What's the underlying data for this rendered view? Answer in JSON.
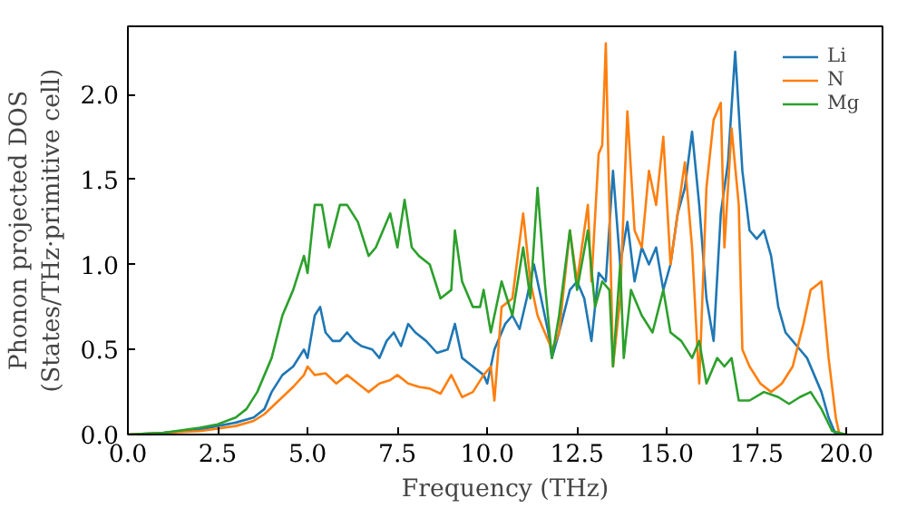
{
  "chart_data": {
    "type": "line",
    "xlabel": "Frequency (THz)",
    "ylabel": "Phonon projected DOS\n(States/THz·primitive cell)",
    "xlim": [
      0,
      21
    ],
    "ylim": [
      0,
      2.4
    ],
    "xticks": [
      {
        "value": 0,
        "label": "0.0"
      },
      {
        "value": 2.5,
        "label": "2.5"
      },
      {
        "value": 5,
        "label": "5.0"
      },
      {
        "value": 7.5,
        "label": "7.5"
      },
      {
        "value": 10,
        "label": "10.0"
      },
      {
        "value": 12.5,
        "label": "12.5"
      },
      {
        "value": 15,
        "label": "15.0"
      },
      {
        "value": 17.5,
        "label": "17.5"
      },
      {
        "value": 20,
        "label": "20.0"
      }
    ],
    "yticks": [
      {
        "value": 0,
        "label": "0.0"
      },
      {
        "value": 0.5,
        "label": "0.5"
      },
      {
        "value": 1,
        "label": "1.0"
      },
      {
        "value": 1.5,
        "label": "1.5"
      },
      {
        "value": 2,
        "label": "2.0"
      }
    ],
    "grid": false,
    "legend": "top right",
    "series": [
      {
        "name": "Li",
        "color": "#1f77b4",
        "x": [
          0,
          1,
          2,
          3,
          3.5,
          3.8,
          4,
          4.3,
          4.6,
          4.9,
          5.0,
          5.2,
          5.35,
          5.5,
          5.7,
          5.9,
          6.1,
          6.3,
          6.5,
          6.8,
          7.0,
          7.2,
          7.4,
          7.6,
          7.8,
          8.0,
          8.3,
          8.6,
          8.9,
          9.1,
          9.3,
          9.6,
          9.9,
          10.0,
          10.2,
          10.5,
          10.7,
          10.9,
          11.1,
          11.3,
          11.5,
          11.7,
          11.8,
          12.0,
          12.3,
          12.5,
          12.7,
          12.9,
          13.1,
          13.3,
          13.5,
          13.7,
          13.9,
          14.1,
          14.3,
          14.5,
          14.7,
          14.9,
          15.1,
          15.3,
          15.5,
          15.7,
          15.9,
          16.1,
          16.3,
          16.5,
          16.7,
          16.9,
          17.1,
          17.3,
          17.5,
          17.7,
          17.9,
          18.1,
          18.3,
          18.5,
          18.7,
          18.9,
          19.1,
          19.3,
          19.5,
          19.7,
          20
        ],
        "values": [
          0,
          0.01,
          0.03,
          0.07,
          0.1,
          0.15,
          0.25,
          0.35,
          0.4,
          0.5,
          0.45,
          0.7,
          0.75,
          0.6,
          0.55,
          0.55,
          0.6,
          0.55,
          0.52,
          0.5,
          0.45,
          0.55,
          0.6,
          0.52,
          0.65,
          0.6,
          0.55,
          0.48,
          0.5,
          0.65,
          0.45,
          0.4,
          0.35,
          0.3,
          0.5,
          0.65,
          0.7,
          0.62,
          0.8,
          1.0,
          0.8,
          0.6,
          0.45,
          0.6,
          0.85,
          0.9,
          0.8,
          0.55,
          0.95,
          0.9,
          1.55,
          1.0,
          1.25,
          0.9,
          1.1,
          1.0,
          1.1,
          0.85,
          1.0,
          1.3,
          1.45,
          1.78,
          1.35,
          0.8,
          0.55,
          1.3,
          1.6,
          2.25,
          1.55,
          1.2,
          1.15,
          1.2,
          1.05,
          0.75,
          0.6,
          0.55,
          0.5,
          0.45,
          0.35,
          0.25,
          0.1,
          0.0,
          0
        ]
      },
      {
        "name": "N",
        "color": "#ff7f0e",
        "x": [
          0,
          2,
          3,
          3.5,
          3.8,
          4.2,
          4.6,
          4.9,
          5.0,
          5.2,
          5.5,
          5.8,
          6.1,
          6.4,
          6.7,
          7.0,
          7.3,
          7.5,
          7.8,
          8.1,
          8.4,
          8.7,
          9.0,
          9.3,
          9.6,
          9.9,
          10.1,
          10.2,
          10.4,
          10.7,
          11.0,
          11.2,
          11.4,
          11.6,
          11.8,
          12.0,
          12.3,
          12.5,
          12.8,
          12.9,
          13.1,
          13.2,
          13.3,
          13.5,
          13.7,
          13.9,
          14.1,
          14.3,
          14.5,
          14.7,
          14.9,
          15.1,
          15.3,
          15.5,
          15.7,
          15.9,
          16.1,
          16.3,
          16.5,
          16.6,
          16.8,
          17.0,
          17.1,
          17.3,
          17.6,
          17.9,
          18.2,
          18.5,
          18.8,
          19.0,
          19.3,
          19.5,
          19.7,
          19.8,
          20
        ],
        "values": [
          0,
          0.02,
          0.05,
          0.08,
          0.12,
          0.2,
          0.28,
          0.35,
          0.4,
          0.35,
          0.36,
          0.3,
          0.35,
          0.3,
          0.25,
          0.3,
          0.32,
          0.35,
          0.3,
          0.28,
          0.27,
          0.24,
          0.35,
          0.22,
          0.25,
          0.35,
          0.4,
          0.2,
          0.75,
          0.8,
          1.3,
          0.9,
          0.7,
          0.6,
          0.5,
          0.6,
          1.2,
          0.9,
          1.35,
          0.9,
          1.65,
          1.7,
          2.3,
          0.4,
          0.8,
          1.9,
          1.2,
          1.1,
          1.55,
          1.35,
          1.75,
          1.0,
          1.3,
          1.6,
          1.1,
          0.3,
          1.45,
          1.85,
          1.95,
          1.1,
          1.8,
          1.35,
          0.5,
          0.4,
          0.3,
          0.25,
          0.3,
          0.4,
          0.65,
          0.85,
          0.9,
          0.45,
          0.1,
          0.0,
          0
        ]
      },
      {
        "name": "Mg",
        "color": "#2ca02c",
        "x": [
          0,
          1,
          2,
          2.5,
          3,
          3.3,
          3.6,
          4.0,
          4.3,
          4.6,
          4.9,
          5.0,
          5.2,
          5.4,
          5.6,
          5.9,
          6.1,
          6.4,
          6.7,
          6.9,
          7.1,
          7.3,
          7.5,
          7.7,
          7.9,
          8.1,
          8.4,
          8.7,
          9.0,
          9.1,
          9.3,
          9.6,
          9.8,
          9.9,
          10.1,
          10.4,
          10.7,
          11.0,
          11.2,
          11.4,
          11.6,
          11.8,
          12.0,
          12.3,
          12.5,
          12.8,
          13.0,
          13.2,
          13.4,
          13.5,
          13.7,
          13.8,
          14.0,
          14.3,
          14.6,
          14.9,
          15.1,
          15.4,
          15.7,
          15.9,
          16.1,
          16.4,
          16.6,
          16.8,
          17.0,
          17.3,
          17.7,
          18.1,
          18.4,
          18.7,
          19.0,
          19.3,
          19.6,
          20
        ],
        "values": [
          0,
          0.01,
          0.04,
          0.06,
          0.1,
          0.15,
          0.25,
          0.45,
          0.7,
          0.85,
          1.05,
          0.95,
          1.35,
          1.35,
          1.1,
          1.35,
          1.35,
          1.25,
          1.05,
          1.1,
          1.2,
          1.3,
          1.1,
          1.38,
          1.1,
          1.05,
          1.0,
          0.8,
          0.85,
          1.2,
          0.9,
          0.75,
          0.75,
          0.85,
          0.6,
          0.9,
          0.7,
          1.1,
          0.8,
          1.45,
          0.9,
          0.45,
          0.7,
          1.2,
          0.85,
          1.2,
          0.75,
          0.9,
          0.85,
          0.4,
          1.0,
          0.45,
          0.85,
          0.7,
          0.6,
          0.85,
          0.6,
          0.55,
          0.45,
          0.55,
          0.3,
          0.45,
          0.4,
          0.45,
          0.2,
          0.2,
          0.25,
          0.22,
          0.18,
          0.22,
          0.25,
          0.15,
          0.02,
          0
        ]
      }
    ]
  }
}
